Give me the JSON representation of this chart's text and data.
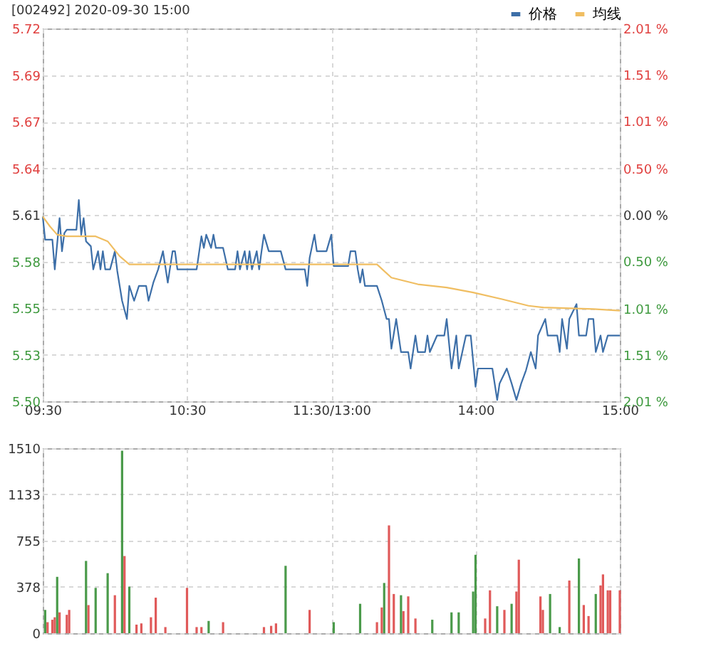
{
  "chart_data": [
    {
      "type": "line",
      "title": "[002492] 2020-09-30 15:00",
      "categories": [
        "09:30",
        null,
        null,
        null,
        null,
        null,
        null,
        null,
        null,
        null,
        null,
        null,
        null,
        null,
        null,
        null,
        null,
        null,
        null,
        null,
        null,
        null,
        null,
        null,
        null,
        null,
        null,
        null,
        null,
        null,
        null,
        null,
        null,
        null,
        null,
        null,
        null,
        null,
        null,
        null,
        null,
        null,
        null,
        null,
        null,
        null,
        null,
        null,
        null,
        null,
        null,
        null,
        null,
        null,
        null,
        null,
        null,
        null,
        null,
        null,
        "10:30",
        null,
        null,
        null,
        null,
        null,
        null,
        null,
        null,
        null,
        null,
        null,
        null,
        null,
        null,
        null,
        null,
        null,
        null,
        null,
        null,
        null,
        null,
        null,
        null,
        null,
        null,
        null,
        null,
        null,
        null,
        null,
        null,
        null,
        null,
        null,
        null,
        null,
        null,
        null,
        null,
        null,
        null,
        null,
        null,
        null,
        null,
        null,
        null,
        null,
        null,
        null,
        null,
        null,
        null,
        null,
        null,
        null,
        null,
        null,
        "11:30/13:00",
        null,
        null,
        null,
        null,
        null,
        null,
        null,
        null,
        null,
        null,
        null,
        null,
        null,
        null,
        null,
        null,
        null,
        null,
        null,
        null,
        null,
        null,
        null,
        null,
        null,
        null,
        null,
        null,
        null,
        null,
        null,
        null,
        null,
        null,
        null,
        null,
        null,
        null,
        null,
        null,
        null,
        null,
        null,
        null,
        null,
        null,
        null,
        null,
        null,
        null,
        null,
        null,
        null,
        null,
        null,
        null,
        null,
        null,
        null,
        "14:00",
        null,
        null,
        null,
        null,
        null,
        null,
        null,
        null,
        null,
        null,
        null,
        null,
        null,
        null,
        null,
        null,
        null,
        null,
        null,
        null,
        null,
        null,
        null,
        null,
        null,
        null,
        null,
        null,
        null,
        null,
        null,
        null,
        null,
        null,
        null,
        null,
        null,
        null,
        null,
        null,
        null,
        null,
        null,
        null,
        null,
        null,
        null,
        null,
        null,
        null,
        null,
        null,
        null,
        null,
        null,
        null,
        null,
        null,
        null,
        "15:00"
      ],
      "ylim": [
        5.4972,
        5.7228
      ],
      "yticks": [
        {
          "value": 5.4972,
          "label": "5.50"
        },
        {
          "value": 5.5254,
          "label": "5.53"
        },
        {
          "value": 5.5536,
          "label": "5.55"
        },
        {
          "value": 5.5818,
          "label": "5.58"
        },
        {
          "value": 5.61,
          "label": "5.61"
        },
        {
          "value": 5.6382,
          "label": "5.64"
        },
        {
          "value": 5.6664,
          "label": "5.67"
        },
        {
          "value": 5.6946,
          "label": "5.69"
        },
        {
          "value": 5.7228,
          "label": "5.72"
        }
      ],
      "y2lim": [
        -2.01,
        2.01
      ],
      "y2ticks": [
        {
          "value": -2.01,
          "label": "2.01 %"
        },
        {
          "value": -1.51,
          "label": "1.51 %"
        },
        {
          "value": -1.01,
          "label": "1.01 %"
        },
        {
          "value": -0.5,
          "label": "0.50 %"
        },
        {
          "value": 0,
          "label": "0.00 %"
        },
        {
          "value": 0.5,
          "label": "0.50 %"
        },
        {
          "value": 1.01,
          "label": "1.01 %"
        },
        {
          "value": 1.51,
          "label": "1.51 %"
        },
        {
          "value": 2.01,
          "label": "2.01 %"
        }
      ],
      "grid": true,
      "legend": "top right",
      "line_style": "solid",
      "marker": "none",
      "series": [
        {
          "name": "价格",
          "color": "#3d6fa8",
          "values": [
            5.609,
            5.595,
            null,
            null,
            5.595,
            5.577,
            null,
            5.608,
            5.588,
            5.599,
            5.601,
            null,
            null,
            null,
            5.601,
            5.619,
            5.598,
            5.608,
            5.594,
            null,
            5.591,
            5.577,
            null,
            5.588,
            5.577,
            5.588,
            5.577,
            null,
            5.577,
            null,
            5.588,
            5.576,
            null,
            5.558,
            null,
            5.547,
            5.567,
            null,
            5.558,
            null,
            5.567,
            null,
            null,
            5.567,
            5.558,
            null,
            5.569,
            null,
            5.577,
            null,
            5.588,
            null,
            5.569,
            null,
            5.588,
            5.588,
            5.577,
            null,
            null,
            null,
            null,
            null,
            null,
            null,
            5.577,
            null,
            5.597,
            5.59,
            5.598,
            null,
            5.59,
            5.598,
            5.59,
            null,
            null,
            5.59,
            null,
            5.577,
            null,
            null,
            5.577,
            5.588,
            5.577,
            null,
            5.588,
            5.577,
            5.588,
            5.577,
            null,
            5.588,
            5.577,
            5.588,
            5.598,
            null,
            5.588,
            null,
            null,
            null,
            null,
            5.588,
            null,
            5.577,
            null,
            null,
            null,
            null,
            null,
            null,
            null,
            5.577,
            5.567,
            5.584,
            null,
            5.598,
            5.588,
            null,
            null,
            null,
            5.588,
            null,
            5.598,
            5.579,
            null,
            null,
            null,
            null,
            null,
            5.579,
            5.588,
            null,
            5.588,
            5.577,
            5.569,
            5.577,
            5.567,
            null,
            null,
            null,
            null,
            5.567,
            null,
            5.558,
            null,
            5.547,
            5.547,
            5.529,
            null,
            5.547,
            null,
            5.527,
            null,
            null,
            5.527,
            5.517,
            null,
            5.537,
            5.527,
            null,
            null,
            5.527,
            5.537,
            5.527,
            null,
            null,
            5.537,
            null,
            null,
            5.537,
            5.547,
            null,
            5.517,
            null,
            5.537,
            5.517,
            null,
            null,
            5.537,
            null,
            5.537,
            null,
            5.506,
            5.517,
            null,
            null,
            null,
            null,
            null,
            5.517,
            null,
            5.498,
            5.508,
            null,
            null,
            5.517,
            null,
            5.508,
            null,
            5.498,
            null,
            5.508,
            null,
            5.516,
            null,
            5.527,
            null,
            5.517,
            5.537,
            null,
            null,
            5.547,
            5.537,
            null,
            null,
            null,
            5.537,
            5.527,
            5.547,
            null,
            5.529,
            5.547,
            null,
            null,
            5.556,
            5.537,
            null,
            null,
            5.537,
            5.547,
            null,
            5.547,
            5.527,
            null,
            5.537,
            5.527,
            null,
            5.537,
            null,
            null,
            null,
            null,
            5.537
          ]
        },
        {
          "name": "均线",
          "color": "#f0be62",
          "values": [
            5.609,
            null,
            null,
            5.603,
            null,
            null,
            5.598,
            null,
            null,
            null,
            5.597,
            null,
            null,
            null,
            null,
            null,
            null,
            null,
            null,
            null,
            null,
            null,
            5.597,
            null,
            null,
            null,
            null,
            5.594,
            null,
            null,
            null,
            null,
            5.585,
            null,
            null,
            null,
            5.58,
            null,
            null,
            null,
            null,
            null,
            null,
            null,
            null,
            null,
            null,
            null,
            null,
            null,
            null,
            null,
            null,
            null,
            null,
            null,
            null,
            null,
            null,
            null,
            null,
            null,
            null,
            null,
            null,
            null,
            null,
            null,
            null,
            null,
            5.58,
            null,
            null,
            null,
            null,
            null,
            null,
            null,
            null,
            null,
            null,
            null,
            null,
            null,
            null,
            null,
            null,
            null,
            null,
            null,
            null,
            null,
            null,
            null,
            null,
            null,
            null,
            null,
            null,
            null,
            null,
            null,
            null,
            null,
            null,
            null,
            null,
            null,
            null,
            null,
            null,
            null,
            null,
            null,
            null,
            null,
            null,
            null,
            null,
            null,
            5.58,
            null,
            null,
            null,
            null,
            null,
            null,
            null,
            null,
            null,
            null,
            null,
            null,
            null,
            null,
            null,
            null,
            null,
            null,
            5.58,
            null,
            null,
            null,
            null,
            null,
            5.572,
            null,
            null,
            null,
            null,
            null,
            null,
            null,
            null,
            null,
            null,
            5.568,
            null,
            null,
            null,
            null,
            null,
            null,
            null,
            null,
            null,
            null,
            null,
            5.566,
            null,
            null,
            null,
            null,
            null,
            null,
            null,
            null,
            null,
            null,
            5.563,
            null,
            null,
            null,
            null,
            null,
            null,
            null,
            null,
            null,
            null,
            null,
            5.559,
            null,
            null,
            null,
            null,
            null,
            null,
            null,
            null,
            null,
            null,
            5.555,
            null,
            null,
            null,
            null,
            null,
            5.554,
            null,
            null,
            null,
            null,
            null,
            null,
            null,
            null,
            null,
            null,
            null,
            null,
            null,
            null,
            null,
            null,
            null,
            null,
            null,
            null,
            5.553,
            null,
            null,
            null,
            null,
            null,
            null,
            null,
            null,
            null,
            null,
            5.552
          ]
        }
      ]
    },
    {
      "type": "bar",
      "categories": [
        null,
        null,
        null,
        null,
        null,
        null,
        null,
        null,
        null,
        null,
        null,
        null,
        null,
        null,
        null,
        null,
        null,
        null,
        null,
        null,
        null,
        null,
        null,
        null,
        null,
        null,
        null,
        null,
        null,
        null,
        null,
        null,
        null,
        null,
        null,
        null,
        null,
        null,
        null,
        null,
        null,
        null,
        null,
        null,
        null,
        null,
        null,
        null,
        null,
        null,
        null,
        null,
        null,
        null,
        null,
        null,
        null,
        null,
        null,
        null,
        null,
        null,
        null,
        null,
        null,
        null,
        null,
        null,
        null,
        null,
        null,
        null,
        null,
        null,
        null,
        null,
        null,
        null,
        null,
        null,
        null,
        null,
        null,
        null,
        null,
        null,
        null,
        null,
        null,
        null,
        null,
        null,
        null,
        null,
        null,
        null,
        null,
        null,
        null,
        null,
        null,
        null,
        null,
        null,
        null,
        null,
        null,
        null,
        null,
        null,
        null,
        null,
        null,
        null,
        null,
        null,
        null,
        null,
        null,
        null,
        null,
        null,
        null,
        null,
        null,
        null,
        null,
        null,
        null,
        null,
        null,
        null,
        null,
        null,
        null,
        null,
        null,
        null,
        null,
        null,
        null,
        null,
        null,
        null,
        null,
        null,
        null,
        null,
        null,
        null,
        null,
        null,
        null,
        null,
        null,
        null,
        null,
        null,
        null,
        null,
        null,
        null,
        null,
        null,
        null,
        null,
        null,
        null,
        null,
        null,
        null,
        null,
        null,
        null,
        null,
        null,
        null,
        null,
        null,
        null,
        null,
        null,
        null,
        null,
        null,
        null,
        null,
        null,
        null,
        null,
        null,
        null,
        null,
        null,
        null,
        null,
        null,
        null,
        null,
        null,
        null,
        null,
        null,
        null,
        null,
        null,
        null,
        null,
        null,
        null,
        null,
        null,
        null,
        null,
        null,
        null,
        null,
        null,
        null,
        null,
        null,
        null,
        null,
        null,
        null,
        null,
        null,
        null,
        null,
        null,
        null,
        null,
        null,
        null,
        null,
        null,
        null,
        null,
        null,
        null,
        null
      ],
      "ylim": [
        0,
        1510
      ],
      "yticks": [
        0,
        378,
        755,
        1133,
        1510
      ],
      "grid": true,
      "tick_labels": "y",
      "series": [
        {
          "color": "#e05a5a",
          "values": [
            null,
            null,
            90,
            null,
            110,
            130,
            null,
            170,
            null,
            null,
            150,
            190,
            null,
            null,
            null,
            null,
            null,
            null,
            null,
            230,
            null,
            null,
            null,
            null,
            null,
            null,
            null,
            null,
            null,
            null,
            310,
            null,
            null,
            null,
            630,
            null,
            null,
            null,
            null,
            70,
            null,
            80,
            null,
            null,
            null,
            130,
            null,
            290,
            null,
            null,
            null,
            50,
            null,
            null,
            null,
            null,
            null,
            null,
            null,
            null,
            370,
            null,
            null,
            null,
            50,
            null,
            50,
            null,
            null,
            null,
            null,
            null,
            null,
            null,
            null,
            90,
            null,
            null,
            null,
            null,
            null,
            null,
            null,
            null,
            null,
            null,
            null,
            null,
            null,
            null,
            null,
            null,
            50,
            null,
            null,
            60,
            null,
            80,
            null,
            null,
            null,
            null,
            null,
            null,
            null,
            null,
            null,
            null,
            null,
            null,
            null,
            190,
            null,
            null,
            null,
            null,
            null,
            null,
            null,
            null,
            null,
            null,
            null,
            null,
            null,
            null,
            null,
            null,
            null,
            null,
            null,
            null,
            null,
            null,
            null,
            null,
            null,
            null,
            null,
            90,
            null,
            210,
            null,
            null,
            880,
            null,
            320,
            null,
            null,
            null,
            180,
            null,
            300,
            null,
            null,
            120,
            null,
            null,
            null,
            null,
            null,
            null,
            null,
            null,
            null,
            null,
            null,
            null,
            null,
            null,
            null,
            null,
            null,
            null,
            null,
            null,
            null,
            null,
            null,
            null,
            null,
            null,
            null,
            null,
            120,
            null,
            350,
            null,
            null,
            null,
            null,
            null,
            190,
            null,
            null,
            null,
            null,
            340,
            600,
            null,
            null,
            null,
            null,
            null,
            null,
            null,
            null,
            300,
            190,
            null,
            null,
            null,
            null,
            null,
            null,
            null,
            null,
            null,
            null,
            430,
            null,
            null,
            null,
            null,
            null,
            230,
            null,
            140,
            null,
            null,
            null,
            null,
            390,
            480,
            null,
            350,
            350,
            null,
            null,
            null,
            350
          ]
        },
        {
          "color": "#4a9a4a",
          "values": [
            null,
            190,
            null,
            null,
            null,
            null,
            460,
            null,
            null,
            null,
            null,
            null,
            null,
            null,
            null,
            null,
            null,
            null,
            590,
            null,
            null,
            null,
            370,
            null,
            null,
            null,
            null,
            490,
            null,
            null,
            null,
            null,
            null,
            1490,
            null,
            null,
            380,
            null,
            null,
            null,
            null,
            null,
            null,
            null,
            null,
            null,
            null,
            null,
            null,
            null,
            null,
            null,
            null,
            null,
            null,
            null,
            null,
            null,
            null,
            null,
            null,
            null,
            null,
            null,
            null,
            null,
            null,
            null,
            null,
            100,
            null,
            null,
            null,
            null,
            null,
            null,
            null,
            null,
            null,
            null,
            null,
            null,
            null,
            null,
            null,
            null,
            null,
            null,
            null,
            null,
            null,
            null,
            null,
            null,
            null,
            null,
            null,
            null,
            null,
            null,
            null,
            550,
            null,
            null,
            null,
            null,
            null,
            null,
            null,
            null,
            null,
            null,
            null,
            null,
            null,
            null,
            null,
            null,
            null,
            null,
            null,
            90,
            null,
            null,
            null,
            null,
            null,
            null,
            null,
            null,
            null,
            null,
            240,
            null,
            null,
            null,
            null,
            null,
            null,
            null,
            null,
            null,
            410,
            null,
            null,
            null,
            null,
            null,
            null,
            310,
            null,
            null,
            null,
            null,
            null,
            null,
            null,
            null,
            null,
            null,
            null,
            null,
            110,
            null,
            null,
            null,
            null,
            null,
            null,
            null,
            170,
            null,
            null,
            170,
            null,
            null,
            null,
            null,
            null,
            340,
            640,
            null,
            null,
            null,
            null,
            null,
            null,
            null,
            null,
            220,
            null,
            null,
            null,
            null,
            null,
            240,
            null,
            null,
            null,
            null,
            null,
            null,
            null,
            null,
            null,
            null,
            null,
            null,
            null,
            null,
            null,
            320,
            null,
            null,
            null,
            50,
            null,
            null,
            null,
            null,
            null,
            null,
            null,
            610,
            null,
            null,
            null,
            null,
            null,
            null,
            320,
            null,
            null,
            null,
            null,
            null,
            null,
            null,
            null,
            null,
            null
          ]
        }
      ]
    }
  ]
}
